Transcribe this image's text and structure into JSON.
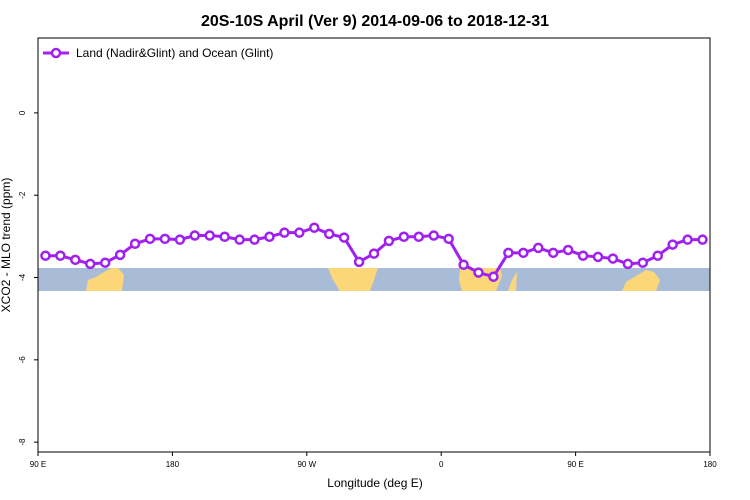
{
  "chart_data": {
    "type": "line",
    "title": "20S-10S April (Ver 9)   2014-09-06 to 2018-12-31",
    "x_label": "Longitude (deg E)",
    "y_label": "XCO2 - MLO trend (ppm)",
    "x": [
      95,
      105,
      115,
      125,
      135,
      145,
      155,
      165,
      175,
      185,
      195,
      205,
      215,
      225,
      235,
      245,
      255,
      265,
      275,
      285,
      295,
      305,
      315,
      325,
      335,
      345,
      355,
      365,
      375,
      385,
      395,
      405,
      415,
      425,
      435,
      445,
      455,
      465,
      475,
      485,
      495,
      505,
      515,
      525,
      535
    ],
    "series": [
      {
        "name": "Land (Nadir&Glint) and Ocean (Glint)",
        "color": "#a020f0",
        "values": [
          -3.47,
          -3.47,
          -3.57,
          -3.67,
          -3.64,
          -3.45,
          -3.18,
          -3.06,
          -3.06,
          -3.08,
          -2.98,
          -2.98,
          -3.01,
          -3.08,
          -3.08,
          -3.01,
          -2.91,
          -2.91,
          -2.79,
          -2.94,
          -3.03,
          -3.62,
          -3.42,
          -3.11,
          -3.01,
          -3.01,
          -2.98,
          -3.06,
          -3.69,
          -3.88,
          -3.98,
          -3.4,
          -3.4,
          -3.28,
          -3.4,
          -3.33,
          -3.47,
          -3.5,
          -3.54,
          -3.67,
          -3.64,
          -3.47,
          -3.2,
          -3.08,
          -3.08
        ]
      }
    ],
    "xlim": [
      90,
      540
    ],
    "xticks": [
      {
        "value": 90,
        "label": "90 E"
      },
      {
        "value": 180,
        "label": "180"
      },
      {
        "value": 270,
        "label": "90 W"
      },
      {
        "value": 360,
        "label": "0"
      },
      {
        "value": 450,
        "label": "90 E"
      },
      {
        "value": 540,
        "label": "180"
      }
    ],
    "ylim": [
      -8.24,
      1.82
    ],
    "yticks": [
      0,
      -2,
      -4,
      -6,
      -8
    ],
    "legend": "top-left"
  }
}
